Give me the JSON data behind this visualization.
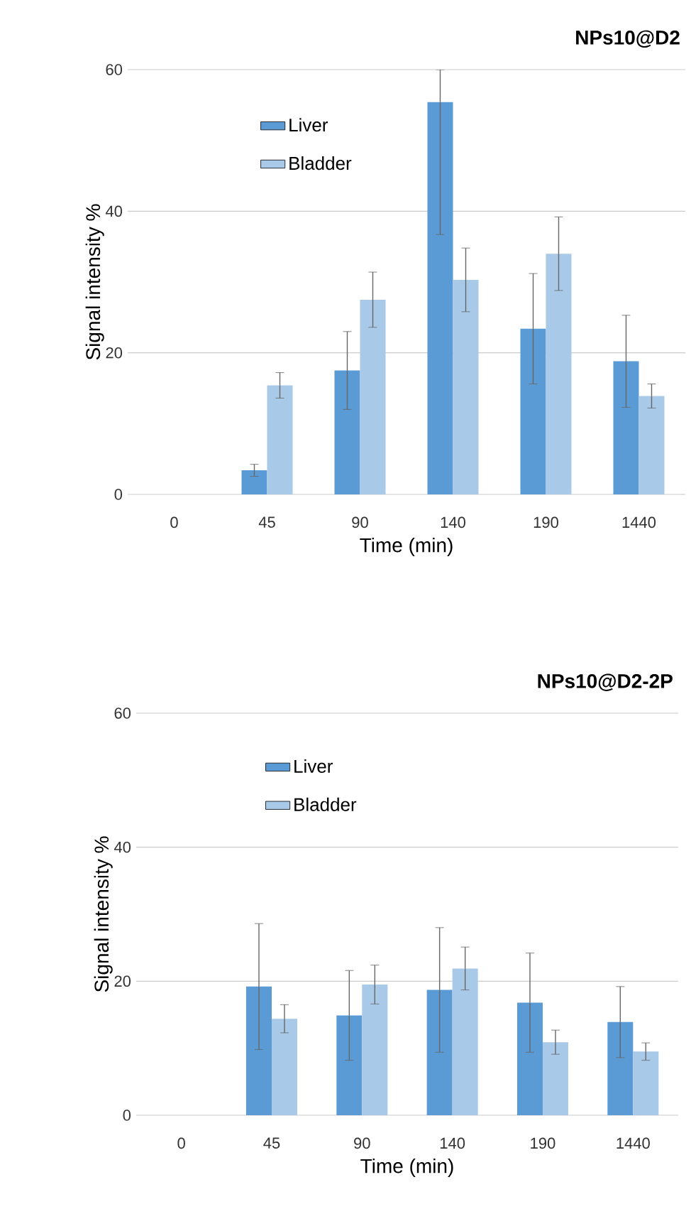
{
  "chart_data": [
    {
      "type": "bar",
      "title": "NPs10@D2",
      "xlabel": "Time (min)",
      "ylabel": "Signal intensity %",
      "categories": [
        "0",
        "45",
        "90",
        "140",
        "190",
        "1440"
      ],
      "series": [
        {
          "name": "Liver",
          "color": "#5b9bd5",
          "values": [
            null,
            3.4,
            17.5,
            55.4,
            23.4,
            18.8
          ],
          "errors": [
            null,
            0.85,
            5.5,
            [
              36.7,
              60
            ],
            7.8,
            6.5
          ]
        },
        {
          "name": "Bladder",
          "color": "#a9c9e8",
          "values": [
            null,
            15.4,
            27.5,
            30.3,
            34.0,
            13.9
          ],
          "errors": [
            null,
            1.8,
            3.9,
            4.5,
            5.2,
            1.7
          ]
        }
      ],
      "ylim": [
        0,
        60
      ],
      "yticks": [
        0,
        20,
        40,
        60
      ],
      "grid": "y",
      "legend": "top left"
    },
    {
      "type": "bar",
      "title": "NPs10@D2-2P",
      "xlabel": "Time (min)",
      "ylabel": "Signal intensity %",
      "categories": [
        "0",
        "45",
        "90",
        "140",
        "190",
        "1440"
      ],
      "series": [
        {
          "name": "Liver",
          "color": "#5b9bd5",
          "values": [
            null,
            19.2,
            14.9,
            18.7,
            16.8,
            13.9
          ],
          "errors": [
            null,
            9.4,
            6.7,
            9.3,
            7.4,
            5.3
          ]
        },
        {
          "name": "Bladder",
          "color": "#a9c9e8",
          "values": [
            null,
            14.4,
            19.5,
            21.9,
            10.9,
            9.5
          ],
          "errors": [
            null,
            2.1,
            2.9,
            3.2,
            1.8,
            1.3
          ]
        }
      ],
      "ylim": [
        0,
        60
      ],
      "yticks": [
        0,
        20,
        40,
        60
      ],
      "grid": "y",
      "legend": "top left"
    }
  ]
}
